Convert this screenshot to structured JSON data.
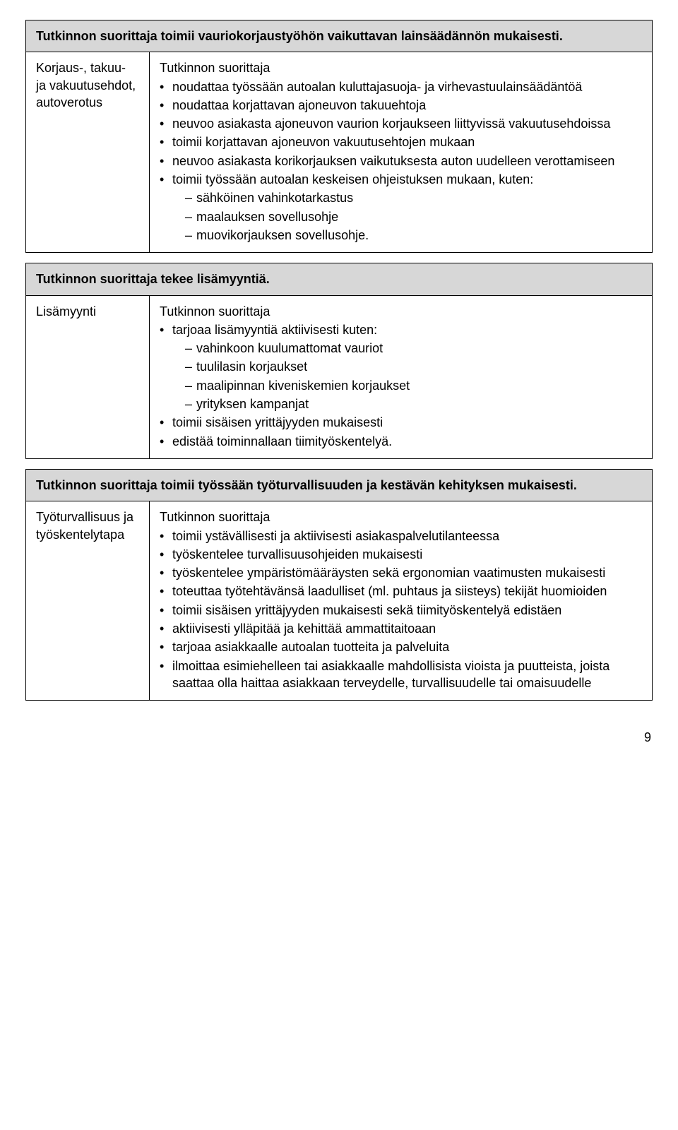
{
  "colors": {
    "header_bg": "#d7d7d7",
    "border": "#000000",
    "text": "#000000",
    "page_bg": "#ffffff"
  },
  "page_number": "9",
  "sections": [
    {
      "header": "Tutkinnon suorittaja toimii vauriokorjaustyöhön vaikuttavan lainsäädännön mukaisesti.",
      "label": "Korjaus-, takuu- ja vakuutusehdot, autoverotus",
      "subhead": "Tutkinnon suorittaja",
      "items": [
        {
          "text": "noudattaa työssään autoalan kuluttajasuoja- ja virhevastuulainsäädäntöä"
        },
        {
          "text": "noudattaa korjattavan ajoneuvon takuuehtoja"
        },
        {
          "text": "neuvoo asiakasta ajoneuvon vaurion korjaukseen liittyvissä vakuutusehdoissa"
        },
        {
          "text": "toimii korjattavan ajoneuvon vakuutusehtojen mukaan"
        },
        {
          "text": "neuvoo asiakasta korikorjauksen vaikutuksesta auton uudelleen verottamiseen"
        },
        {
          "text": "toimii työssään autoalan keskeisen ohjeistuksen mukaan, kuten:",
          "sub": [
            "sähköinen vahinkotarkastus",
            "maalauksen sovellusohje",
            "muovikorjauksen sovellusohje."
          ]
        }
      ]
    },
    {
      "header": "Tutkinnon suorittaja tekee lisämyyntiä.",
      "label": "Lisämyynti",
      "subhead": "Tutkinnon suorittaja",
      "items": [
        {
          "text": "tarjoaa lisämyyntiä aktiivisesti kuten:",
          "sub": [
            "vahinkoon kuulumattomat vauriot",
            "tuulilasin korjaukset",
            "maalipinnan kiveniskemien korjaukset",
            "yrityksen kampanjat"
          ]
        },
        {
          "text": "toimii sisäisen yrittäjyyden mukaisesti"
        },
        {
          "text": "edistää toiminnallaan tiimityöskentelyä."
        }
      ]
    },
    {
      "header": "Tutkinnon suorittaja toimii työssään työturvallisuuden ja kestävän kehityksen mukaisesti.",
      "label": "Työturvallisuus ja työskentelytapa",
      "subhead": "Tutkinnon suorittaja",
      "items": [
        {
          "text": "toimii ystävällisesti ja aktiivisesti asiakaspalvelutilanteessa"
        },
        {
          "text": "työskentelee turvallisuusohjeiden mukaisesti"
        },
        {
          "text": "työskentelee ympäristömääräysten sekä ergonomian vaatimusten mukaisesti"
        },
        {
          "text": "toteuttaa työtehtävänsä laadulliset (ml. puhtaus ja siisteys) tekijät huomioiden"
        },
        {
          "text": "toimii sisäisen yrittäjyyden mukaisesti sekä tiimityöskentelyä edistäen"
        },
        {
          "text": "aktiivisesti ylläpitää ja kehittää ammattitaitoaan"
        },
        {
          "text": "tarjoaa asiakkaalle autoalan tuotteita ja palveluita"
        },
        {
          "text": "ilmoittaa esimiehelleen tai asiakkaalle mahdollisista vioista ja puutteista, joista saattaa olla haittaa asiakkaan terveydelle, turvallisuudelle tai omaisuudelle"
        }
      ]
    }
  ]
}
